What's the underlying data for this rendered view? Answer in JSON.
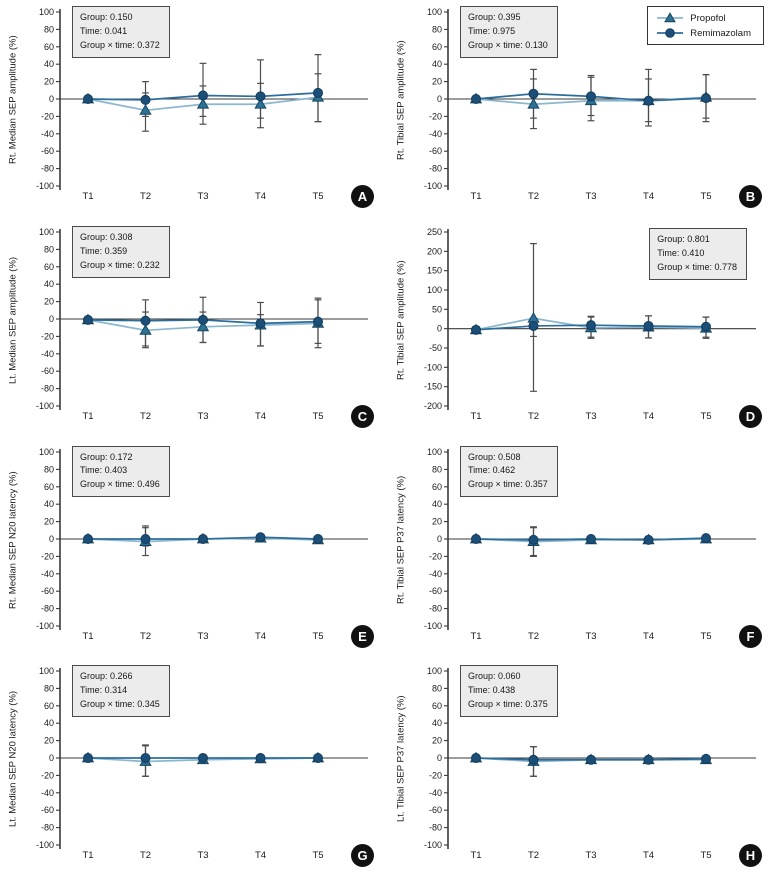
{
  "figure": {
    "background": "#ffffff",
    "categories": [
      "T1",
      "T2",
      "T3",
      "T4",
      "T5"
    ]
  },
  "legend": {
    "items": [
      {
        "label": "Propofol",
        "marker": "triangle"
      },
      {
        "label": "Remimazolam",
        "marker": "circle"
      }
    ]
  },
  "style": {
    "propofol_line": "#8ab6ce",
    "propofol_marker_fill": "#2e7195",
    "propofol_marker_edge": "#16465f",
    "remimazolam_line": "#2c6d9c",
    "remimazolam_marker_fill": "#1c4f78",
    "remimazolam_marker_edge": "#123a5a",
    "error_bar": "#4d4d4d",
    "axis": "#3a3a3a",
    "text": "#1a1a1a",
    "stats_bg": "#ececec",
    "stats_border": "#4a4a4a",
    "badge_bg": "#111111",
    "badge_text": "#ffffff"
  },
  "chart_data": [
    {
      "type": "line",
      "badge": "A",
      "ylabel": "Rt. Median SEP amplitude (%)",
      "ylim": [
        -100,
        100
      ],
      "ytick": 20,
      "categories": [
        "T1",
        "T2",
        "T3",
        "T4",
        "T5"
      ],
      "stats_lines": [
        "Group: 0.150",
        "Time: 0.041",
        "Group × time: 0.372"
      ],
      "stats_pos": "left",
      "show_legend": false,
      "series": [
        {
          "name": "Propofol",
          "marker": "triangle",
          "values": [
            0,
            -13,
            -6,
            -6,
            2
          ],
          "err_up": [
            3,
            20,
            21,
            24,
            27
          ],
          "err_dn": [
            3,
            24,
            23,
            27,
            28
          ]
        },
        {
          "name": "Remimazolam",
          "marker": "circle",
          "values": [
            0,
            -1,
            4,
            3,
            7
          ],
          "err_up": [
            3,
            21,
            37,
            42,
            44
          ],
          "err_dn": [
            3,
            19,
            24,
            25,
            33
          ]
        }
      ]
    },
    {
      "type": "line",
      "badge": "B",
      "ylabel": "Rt. Tibial SEP amplitude (%)",
      "ylim": [
        -100,
        100
      ],
      "ytick": 20,
      "categories": [
        "T1",
        "T2",
        "T3",
        "T4",
        "T5"
      ],
      "stats_lines": [
        "Group: 0.395",
        "Time: 0.975",
        "Group × time: 0.130"
      ],
      "stats_pos": "left",
      "show_legend": true,
      "series": [
        {
          "name": "Propofol",
          "marker": "triangle",
          "values": [
            0,
            -6,
            -2,
            -2,
            2
          ],
          "err_up": [
            3,
            29,
            27,
            25,
            26
          ],
          "err_dn": [
            3,
            28,
            23,
            29,
            28
          ]
        },
        {
          "name": "Remimazolam",
          "marker": "circle",
          "values": [
            0,
            6,
            3,
            -2,
            1
          ],
          "err_up": [
            3,
            28,
            24,
            36,
            27
          ],
          "err_dn": [
            3,
            28,
            22,
            24,
            23
          ]
        }
      ]
    },
    {
      "type": "line",
      "badge": "C",
      "ylabel": "Lt. Median SEP amplitude (%)",
      "ylim": [
        -100,
        100
      ],
      "ytick": 20,
      "categories": [
        "T1",
        "T2",
        "T3",
        "T4",
        "T5"
      ],
      "stats_lines": [
        "Group: 0.308",
        "Time: 0.359",
        "Group × time: 0.232"
      ],
      "stats_pos": "left",
      "show_legend": false,
      "series": [
        {
          "name": "Propofol",
          "marker": "triangle",
          "values": [
            -1,
            -13,
            -9,
            -7,
            -5
          ],
          "err_up": [
            2,
            21,
            17,
            12,
            27
          ],
          "err_dn": [
            2,
            20,
            18,
            24,
            28
          ]
        },
        {
          "name": "Remimazolam",
          "marker": "circle",
          "values": [
            -1,
            -2,
            -1,
            -5,
            -3
          ],
          "err_up": [
            2,
            24,
            26,
            24,
            27
          ],
          "err_dn": [
            2,
            29,
            26,
            26,
            25
          ]
        }
      ]
    },
    {
      "type": "line",
      "badge": "D",
      "ylabel": "Rt. Tibial SEP amplitude (%)",
      "ylim": [
        -200,
        250
      ],
      "ytick": 50,
      "categories": [
        "T1",
        "T2",
        "T3",
        "T4",
        "T5"
      ],
      "stats_lines": [
        "Group: 0.801",
        "Time: 0.410",
        "Group × time: 0.778"
      ],
      "stats_pos": "right",
      "show_legend": false,
      "series": [
        {
          "name": "Propofol",
          "marker": "triangle",
          "values": [
            -3,
            27,
            2,
            4,
            1
          ],
          "err_up": [
            8,
            193,
            28,
            29,
            29
          ],
          "err_dn": [
            8,
            189,
            27,
            28,
            26
          ]
        },
        {
          "name": "Remimazolam",
          "marker": "circle",
          "values": [
            -3,
            7,
            9,
            7,
            5
          ],
          "err_up": [
            8,
            13,
            23,
            26,
            25
          ],
          "err_dn": [
            8,
            27,
            31,
            31,
            27
          ]
        }
      ]
    },
    {
      "type": "line",
      "badge": "E",
      "ylabel": "Rt. Median SEP N20 latency (%)",
      "ylim": [
        -100,
        100
      ],
      "ytick": 20,
      "categories": [
        "T1",
        "T2",
        "T3",
        "T4",
        "T5"
      ],
      "stats_lines": [
        "Group: 0.172",
        "Time: 0.403",
        "Group × time: 0.496"
      ],
      "stats_pos": "left",
      "show_legend": false,
      "series": [
        {
          "name": "Propofol",
          "marker": "triangle",
          "values": [
            0,
            -3,
            0,
            1,
            -1
          ],
          "err_up": [
            2,
            18,
            3,
            3,
            3
          ],
          "err_dn": [
            2,
            16,
            3,
            3,
            3
          ]
        },
        {
          "name": "Remimazolam",
          "marker": "circle",
          "values": [
            0,
            0,
            0,
            2,
            0
          ],
          "err_up": [
            2,
            13,
            3,
            3,
            3
          ],
          "err_dn": [
            2,
            8,
            3,
            3,
            3
          ]
        }
      ]
    },
    {
      "type": "line",
      "badge": "F",
      "ylabel": "Rt. Tibial SEP P37 latency (%)",
      "ylim": [
        -100,
        100
      ],
      "ytick": 20,
      "categories": [
        "T1",
        "T2",
        "T3",
        "T4",
        "T5"
      ],
      "stats_lines": [
        "Group: 0.508",
        "Time: 0.462",
        "Group × time: 0.357"
      ],
      "stats_pos": "left",
      "show_legend": false,
      "series": [
        {
          "name": "Propofol",
          "marker": "triangle",
          "values": [
            0,
            -3,
            -1,
            -1,
            0
          ],
          "err_up": [
            2,
            16,
            3,
            3,
            3
          ],
          "err_dn": [
            2,
            16,
            3,
            3,
            3
          ]
        },
        {
          "name": "Remimazolam",
          "marker": "circle",
          "values": [
            0,
            -1,
            0,
            -1,
            1
          ],
          "err_up": [
            2,
            15,
            3,
            3,
            3
          ],
          "err_dn": [
            2,
            19,
            3,
            3,
            3
          ]
        }
      ]
    },
    {
      "type": "line",
      "badge": "G",
      "ylabel": "Lt. Median SEP N20 latency (%)",
      "ylim": [
        -100,
        100
      ],
      "ytick": 20,
      "categories": [
        "T1",
        "T2",
        "T3",
        "T4",
        "T5"
      ],
      "stats_lines": [
        "Group: 0.266",
        "Time: 0.314",
        "Group × time: 0.345"
      ],
      "stats_pos": "left",
      "show_legend": false,
      "series": [
        {
          "name": "Propofol",
          "marker": "triangle",
          "values": [
            0,
            -4,
            -2,
            -1,
            0
          ],
          "err_up": [
            2,
            18,
            3,
            3,
            3
          ],
          "err_dn": [
            2,
            17,
            3,
            3,
            3
          ]
        },
        {
          "name": "Remimazolam",
          "marker": "circle",
          "values": [
            0,
            0,
            0,
            0,
            0
          ],
          "err_up": [
            2,
            15,
            3,
            3,
            3
          ],
          "err_dn": [
            2,
            21,
            3,
            3,
            3
          ]
        }
      ]
    },
    {
      "type": "line",
      "badge": "H",
      "ylabel": "Lt. Tibial SEP P37 latency (%)",
      "ylim": [
        -100,
        100
      ],
      "ytick": 20,
      "categories": [
        "T1",
        "T2",
        "T3",
        "T4",
        "T5"
      ],
      "stats_lines": [
        "Group: 0.060",
        "Time: 0.438",
        "Group × time: 0.375"
      ],
      "stats_pos": "left",
      "show_legend": false,
      "series": [
        {
          "name": "Propofol",
          "marker": "triangle",
          "values": [
            0,
            -4,
            -2,
            -2,
            -2
          ],
          "err_up": [
            2,
            17,
            3,
            3,
            3
          ],
          "err_dn": [
            2,
            17,
            3,
            3,
            3
          ]
        },
        {
          "name": "Remimazolam",
          "marker": "circle",
          "values": [
            0,
            -2,
            -2,
            -2,
            -1
          ],
          "err_up": [
            2,
            15,
            3,
            3,
            3
          ],
          "err_dn": [
            2,
            19,
            3,
            3,
            3
          ]
        }
      ]
    }
  ]
}
